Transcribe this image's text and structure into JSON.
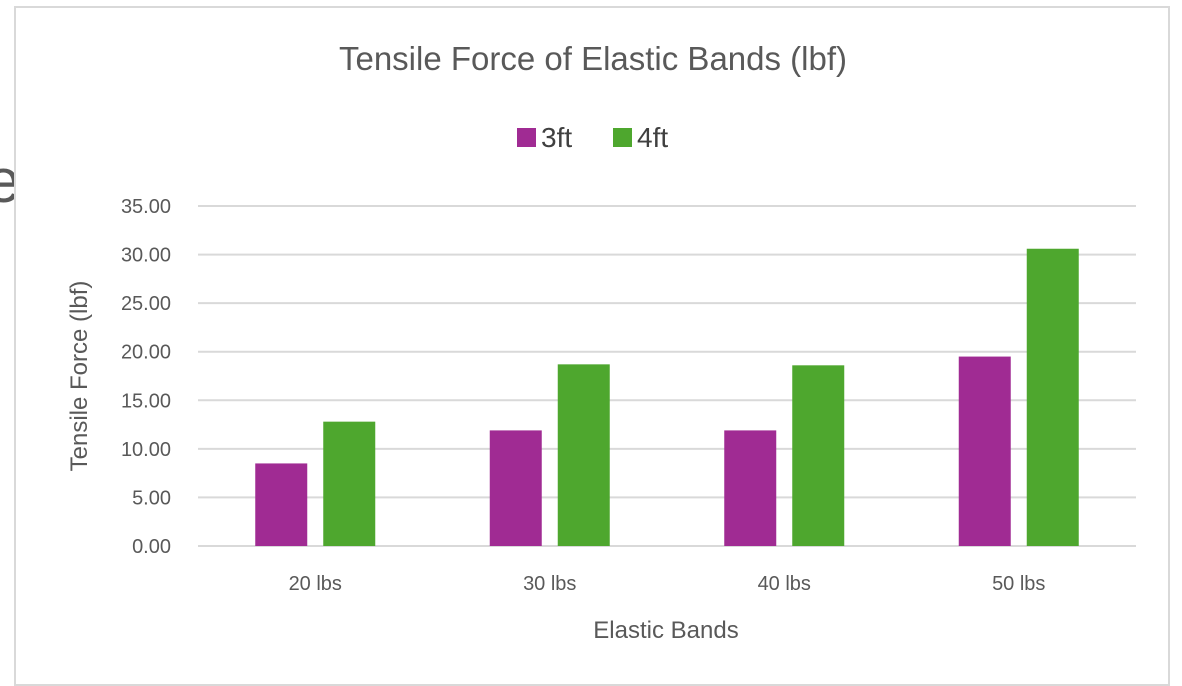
{
  "page_edge": {
    "glyph": "e"
  },
  "chart_data": {
    "type": "bar",
    "title": "Tensile Force of Elastic Bands (lbf)",
    "xlabel": "Elastic Bands",
    "ylabel": "Tensile Force (lbf)",
    "categories": [
      "20 lbs",
      "30 lbs",
      "40 lbs",
      "50 lbs"
    ],
    "series": [
      {
        "name": "3ft",
        "color": "#a02b93",
        "values": [
          8.5,
          11.9,
          11.9,
          19.5
        ]
      },
      {
        "name": "4ft",
        "color": "#4ea72e",
        "values": [
          12.8,
          18.7,
          18.6,
          30.6
        ]
      }
    ],
    "ylim": [
      0,
      35
    ],
    "yticks": [
      "0.00",
      "5.00",
      "10.00",
      "15.00",
      "20.00",
      "25.00",
      "30.00",
      "35.00"
    ],
    "ytick_step": 5,
    "grid": true,
    "gridline_color": "#d9d9d9",
    "legend_position": "top-center"
  }
}
